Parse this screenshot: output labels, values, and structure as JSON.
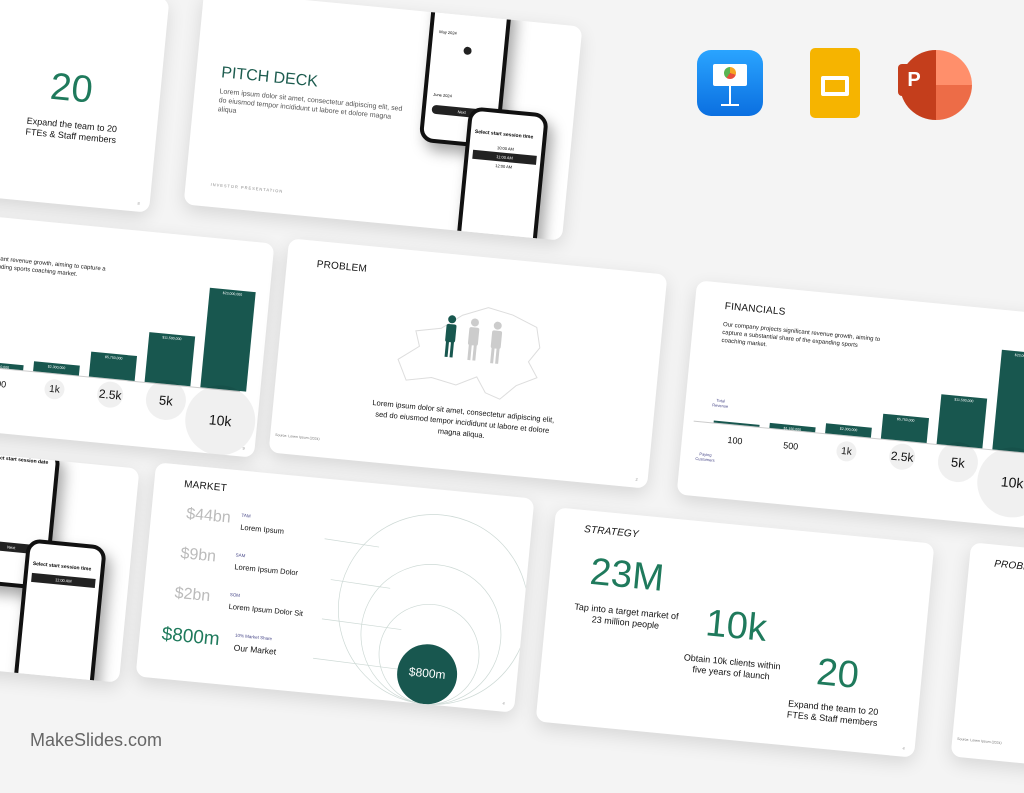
{
  "watermark": "MakeSlides.com",
  "apps": [
    {
      "name": "Keynote",
      "icon": "keynote-icon",
      "color": "#1e88f0"
    },
    {
      "name": "Google Slides",
      "icon": "google-slides-icon",
      "color": "#f6b400"
    },
    {
      "name": "PowerPoint",
      "icon": "powerpoint-icon",
      "color": "#d24726"
    }
  ],
  "colors": {
    "accent": "#18574f",
    "green_text": "#1f7a5c"
  },
  "strategy": {
    "title": "STRATEGY",
    "stats": [
      {
        "value": "23M",
        "caption": "Tap into a target market of 23 million people"
      },
      {
        "value": "10k",
        "caption": "Obtain 10k clients within five years of launch"
      },
      {
        "value": "20",
        "caption": "Expand the team to 20 FTEs & Staff members"
      }
    ]
  },
  "pitch": {
    "title": "PITCH DECK",
    "text": "Lorem ipsum dolor sit amet, consectetur adipiscing elit, sed do eiusmod tempor incididunt ut labore et dolore magna aliqua",
    "footer": "INVESTOR PRESENTATION",
    "phone1_title": "Select start session date",
    "phone1_month1": "May 2024",
    "phone1_month2": "June 2024",
    "phone1_button": "Next",
    "phone2_title": "Select start session time",
    "phone2_times": [
      "10:00 AM",
      "11:00 AM",
      "12:00 AM"
    ]
  },
  "problem": {
    "title": "PROBLEM",
    "text": "Lorem ipsum dolor sit amet, consectetur adipiscing elit, sed do eiusmod tempor incididunt ut labore et dolore magna aliqua.",
    "source": "Source: Lorem Ipsum (2024)"
  },
  "financials": {
    "title": "FINANCIALS",
    "text": "Our company projects significant revenue growth, aiming to capture a substantial share of the expanding sports coaching market.",
    "revenue_label": "Total Revenue",
    "customers_label": "Paying Customers"
  },
  "chart_data": {
    "type": "bar",
    "categories": [
      "100",
      "500",
      "1k",
      "2.5k",
      "5k",
      "10k"
    ],
    "values": [
      230000,
      1150000,
      2300000,
      5750000,
      11500000,
      23000000
    ],
    "data_labels": [
      "",
      "$1,150,000",
      "$2,300,000",
      "$5,750,000",
      "$11,500,000",
      "$23,000,000"
    ],
    "ylabel": "Total Revenue",
    "xlabel": "Paying Customers"
  },
  "market": {
    "title": "MARKET",
    "rows": [
      {
        "value": "$44bn",
        "tag": "TAM",
        "label": "Lorem Ipsum"
      },
      {
        "value": "$9bn",
        "tag": "SAM",
        "label": "Lorem Ipsum Dolor"
      },
      {
        "value": "$2bn",
        "tag": "SOM",
        "label": "Lorem Ipsum Dolor Sit"
      },
      {
        "value": "$800m",
        "tag": "10% Market Share",
        "label": "Our Market"
      }
    ],
    "circle_value": "$800m"
  },
  "page_numbers": [
    "8",
    "2",
    "9",
    "4"
  ]
}
